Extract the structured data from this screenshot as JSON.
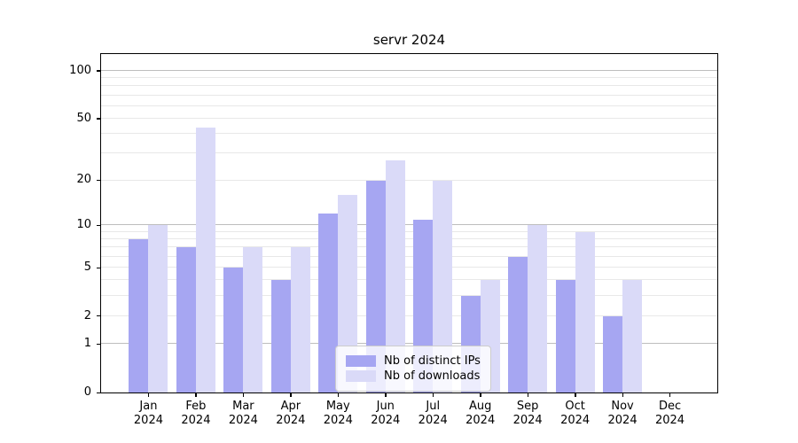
{
  "title": "servr 2024",
  "chart_data": {
    "type": "bar",
    "title": "servr 2024",
    "categories": [
      "Jan",
      "Feb",
      "Mar",
      "Apr",
      "May",
      "Jun",
      "Jul",
      "Aug",
      "Sep",
      "Oct",
      "Nov",
      "Dec"
    ],
    "year_label": "2024",
    "series": [
      {
        "name": "Nb of distinct IPs",
        "color": "#a6a6f2",
        "values": [
          8,
          7,
          5,
          4,
          12,
          20,
          11,
          3,
          6,
          4,
          2,
          0
        ]
      },
      {
        "name": "Nb of downloads",
        "color": "#dadaf8",
        "values": [
          10,
          44,
          7,
          7,
          16,
          27,
          20,
          4,
          10,
          9,
          4,
          0
        ]
      }
    ],
    "y_scale": "log1p",
    "ylim": [
      0,
      127.5
    ],
    "y_ticks": [
      0,
      1,
      2,
      5,
      10,
      20,
      50,
      100
    ],
    "y_major_gridlines": [
      1,
      10,
      100
    ],
    "y_minor_gridlines": [
      2,
      3,
      4,
      5,
      6,
      7,
      8,
      9,
      20,
      30,
      40,
      50,
      60,
      70,
      80,
      90
    ],
    "grid": true,
    "legend_position": "lower center"
  },
  "colors": {
    "bar_distinct_ips": "#a6a6f2",
    "bar_downloads": "#dadaf8",
    "gridline_major": "#bdbdbd",
    "gridline_minor": "#e8e8e8",
    "spine": "#000000",
    "legend_border": "#cccccc"
  }
}
